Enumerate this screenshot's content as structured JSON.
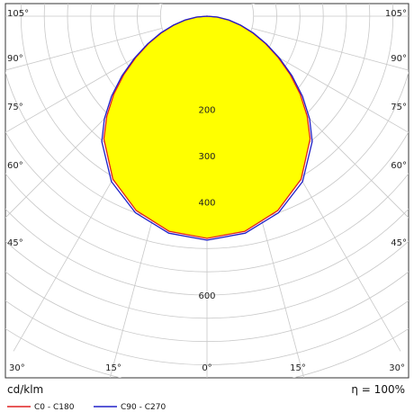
{
  "chart_data": {
    "type": "polar-luminous-intensity",
    "unit": "cd/klm",
    "efficiency": "η = 100%",
    "angle_labels": [
      "105°",
      "90°",
      "75°",
      "60°",
      "45°",
      "30°",
      "15°",
      "0°",
      "15°",
      "30°",
      "45°",
      "60°",
      "75°",
      "90°",
      "105°"
    ],
    "radial_labels": [
      "200",
      "300",
      "400",
      "600"
    ],
    "radial_values": [
      200,
      300,
      400,
      600
    ],
    "grid": true,
    "legend_position": "bottom-left",
    "series": [
      {
        "name": "C0 - C180",
        "color": "#e02020",
        "angles": [
          0,
          10,
          20,
          30,
          40,
          45,
          50,
          55,
          60,
          65,
          70,
          75,
          80,
          85,
          90
        ],
        "values": [
          478,
          470,
          445,
          405,
          345,
          305,
          262,
          218,
          176,
          138,
          104,
          74,
          47,
          22,
          0
        ]
      },
      {
        "name": "C90 - C270",
        "color": "#2020c8",
        "angles": [
          0,
          10,
          20,
          30,
          40,
          45,
          50,
          55,
          60,
          65,
          70,
          75,
          80,
          85,
          90
        ],
        "values": [
          482,
          474,
          450,
          411,
          352,
          312,
          268,
          223,
          180,
          141,
          106,
          75,
          48,
          23,
          0
        ]
      }
    ],
    "fill_color": "#ffff00"
  }
}
